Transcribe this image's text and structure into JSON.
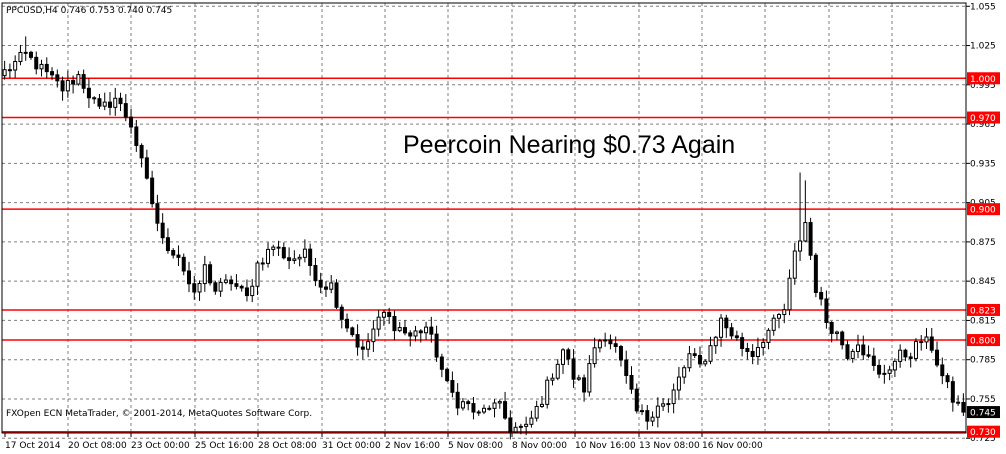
{
  "chart_data": {
    "type": "candlestick",
    "symbol_line": "PPCUSD,H4  0.746 0.753 0.740 0.745",
    "title": "Peercoin Nearing $0.73 Again",
    "watermark": "FXOpen ECN MetaTrader, © 2001-2014, MetaQuotes Software Corp.",
    "ylim": [
      0.72,
      1.06
    ],
    "y_ticks": [
      1.055,
      1.025,
      0.995,
      0.965,
      0.935,
      0.905,
      0.875,
      0.845,
      0.815,
      0.785,
      0.755,
      0.725
    ],
    "x_ticks": [
      "17 Oct 2014",
      "20 Oct 08:00",
      "23 Oct 00:00",
      "25 Oct 16:00",
      "28 Oct 08:00",
      "31 Oct 00:00",
      "2 Nov 16:00",
      "5 Nov 08:00",
      "8 Nov 00:00",
      "10 Nov 16:00",
      "13 Nov 08:00",
      "16 Nov 00:00"
    ],
    "levels": [
      {
        "label": "1.000",
        "value": 1.0
      },
      {
        "label": "0.970",
        "value": 0.97
      },
      {
        "label": "0.900",
        "value": 0.9
      },
      {
        "label": "0.823",
        "value": 0.823
      },
      {
        "label": "0.800",
        "value": 0.8
      },
      {
        "label": "0.730",
        "value": 0.73
      }
    ],
    "current_price": {
      "label": "0.745",
      "value": 0.745
    },
    "grid": true,
    "colors": {
      "candle": "#000000",
      "level": "#ff0000",
      "grid": "#7f7f7f",
      "label_bg": "#ff0000",
      "current_bg": "#000000"
    },
    "close_path": [
      [
        0,
        1.005
      ],
      [
        4,
        1.018
      ],
      [
        8,
        1.003
      ],
      [
        11,
        0.992
      ],
      [
        14,
        1.002
      ],
      [
        16,
        0.988
      ],
      [
        18,
        0.975
      ],
      [
        21,
        0.985
      ],
      [
        24,
        0.965
      ],
      [
        27,
        0.92
      ],
      [
        30,
        0.875
      ],
      [
        33,
        0.865
      ],
      [
        36,
        0.832
      ],
      [
        38,
        0.855
      ],
      [
        40,
        0.838
      ],
      [
        43,
        0.845
      ],
      [
        46,
        0.832
      ],
      [
        48,
        0.858
      ],
      [
        51,
        0.872
      ],
      [
        54,
        0.862
      ],
      [
        57,
        0.865
      ],
      [
        60,
        0.843
      ],
      [
        62,
        0.842
      ],
      [
        64,
        0.818
      ],
      [
        66,
        0.805
      ],
      [
        68,
        0.79
      ],
      [
        70,
        0.808
      ],
      [
        72,
        0.82
      ],
      [
        74,
        0.812
      ],
      [
        77,
        0.803
      ],
      [
        80,
        0.81
      ],
      [
        82,
        0.79
      ],
      [
        84,
        0.765
      ],
      [
        86,
        0.753
      ],
      [
        88,
        0.75
      ],
      [
        90,
        0.742
      ],
      [
        92,
        0.75
      ],
      [
        94,
        0.748
      ],
      [
        96,
        0.733
      ],
      [
        99,
        0.732
      ],
      [
        102,
        0.755
      ],
      [
        104,
        0.775
      ],
      [
        106,
        0.793
      ],
      [
        108,
        0.772
      ],
      [
        110,
        0.763
      ],
      [
        112,
        0.795
      ],
      [
        114,
        0.805
      ],
      [
        116,
        0.793
      ],
      [
        118,
        0.77
      ],
      [
        120,
        0.745
      ],
      [
        122,
        0.74
      ],
      [
        124,
        0.752
      ],
      [
        126,
        0.75
      ],
      [
        128,
        0.77
      ],
      [
        130,
        0.788
      ],
      [
        132,
        0.78
      ],
      [
        134,
        0.795
      ],
      [
        136,
        0.815
      ],
      [
        138,
        0.805
      ],
      [
        140,
        0.795
      ],
      [
        142,
        0.79
      ],
      [
        144,
        0.802
      ],
      [
        146,
        0.812
      ],
      [
        148,
        0.823
      ],
      [
        150,
        0.865
      ],
      [
        152,
        0.89
      ],
      [
        154,
        0.84
      ],
      [
        156,
        0.815
      ],
      [
        158,
        0.805
      ],
      [
        160,
        0.79
      ],
      [
        162,
        0.8
      ],
      [
        164,
        0.785
      ],
      [
        166,
        0.772
      ],
      [
        168,
        0.78
      ],
      [
        170,
        0.788
      ],
      [
        172,
        0.79
      ],
      [
        174,
        0.8
      ],
      [
        176,
        0.795
      ],
      [
        178,
        0.772
      ],
      [
        180,
        0.755
      ],
      [
        182,
        0.745
      ]
    ]
  }
}
